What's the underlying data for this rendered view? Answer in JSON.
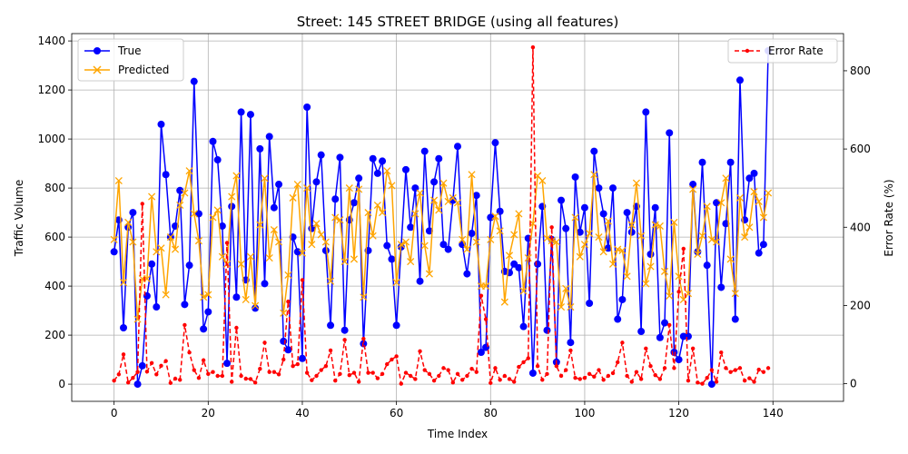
{
  "chart_data": {
    "type": "line",
    "title": "Street: 145 STREET BRIDGE (using all features)",
    "xlabel": "Time Index",
    "ylabel": "Traffic Volume",
    "y2label": "Error Rate (%)",
    "xlim": [
      -9,
      155
    ],
    "ylim": [
      -70,
      1430
    ],
    "y2lim": [
      -45,
      895
    ],
    "xticks": [
      0,
      20,
      40,
      60,
      80,
      100,
      120,
      140
    ],
    "yticks": [
      0,
      200,
      400,
      600,
      800,
      1000,
      1200,
      1400
    ],
    "y2ticks": [
      0,
      200,
      400,
      600,
      800
    ],
    "grid": true,
    "legend_left": "upper-left",
    "legend_right": "upper-right",
    "series": [
      {
        "name": "True",
        "color": "#0000ff",
        "marker": "circle",
        "axis": "left",
        "values": [
          540,
          670,
          230,
          640,
          700,
          0,
          75,
          360,
          490,
          315,
          1060,
          855,
          600,
          645,
          790,
          325,
          485,
          1235,
          695,
          225,
          295,
          990,
          915,
          645,
          85,
          725,
          355,
          1110,
          425,
          1100,
          310,
          960,
          410,
          1010,
          720,
          815,
          175,
          140,
          600,
          540,
          105,
          1130,
          635,
          825,
          935,
          545,
          240,
          755,
          925,
          220,
          670,
          740,
          840,
          165,
          545,
          920,
          860,
          910,
          565,
          510,
          240,
          560,
          875,
          640,
          800,
          420,
          950,
          625,
          825,
          920,
          570,
          550,
          750,
          970,
          570,
          450,
          615,
          770,
          130,
          150,
          680,
          985,
          705,
          460,
          455,
          490,
          475,
          235,
          595,
          45,
          490,
          725,
          220,
          590,
          90,
          750,
          635,
          170,
          845,
          620,
          720,
          330,
          950,
          800,
          695,
          555,
          800,
          265,
          345,
          700,
          620,
          725,
          215,
          1110,
          530,
          720,
          190,
          250,
          1025,
          130,
          100,
          195,
          195,
          815,
          540,
          905,
          485,
          0,
          740,
          395,
          655,
          905,
          265,
          1240,
          670,
          840,
          860,
          535,
          570,
          1360
        ]
      },
      {
        "name": "Predicted",
        "color": "#ffa500",
        "marker": "x",
        "axis": "left",
        "values": [
          590,
          830,
          415,
          660,
          580,
          265,
          430,
          430,
          765,
          540,
          555,
          365,
          600,
          550,
          730,
          780,
          870,
          695,
          585,
          355,
          365,
          680,
          710,
          520,
          490,
          765,
          850,
          490,
          345,
          520,
          320,
          650,
          840,
          515,
          630,
          580,
          290,
          445,
          760,
          815,
          535,
          800,
          570,
          655,
          610,
          580,
          420,
          680,
          670,
          500,
          800,
          510,
          795,
          355,
          700,
          605,
          730,
          700,
          870,
          810,
          415,
          570,
          580,
          500,
          695,
          780,
          565,
          450,
          750,
          710,
          820,
          745,
          760,
          740,
          590,
          550,
          855,
          580,
          400,
          400,
          590,
          685,
          625,
          335,
          525,
          610,
          695,
          380,
          515,
          655,
          850,
          830,
          595,
          585,
          580,
          315,
          390,
          315,
          680,
          520,
          570,
          615,
          855,
          600,
          540,
          665,
          490,
          550,
          545,
          440,
          650,
          820,
          605,
          410,
          480,
          650,
          645,
          460,
          360,
          660,
          440,
          345,
          370,
          795,
          530,
          605,
          725,
          590,
          580,
          740,
          840,
          510,
          370,
          760,
          600,
          640,
          785,
          745,
          680,
          780
        ]
      },
      {
        "name": "Error Rate",
        "color": "#ff0000",
        "marker": "dot",
        "axis": "right",
        "values": [
          8,
          24,
          75,
          3,
          15,
          30,
          460,
          31,
          53,
          24,
          46,
          58,
          2,
          13,
          10,
          150,
          80,
          35,
          15,
          60,
          25,
          30,
          20,
          20,
          360,
          5,
          143,
          20,
          13,
          12,
          3,
          38,
          105,
          30,
          30,
          24,
          62,
          210,
          45,
          50,
          265,
          28,
          9,
          20,
          35,
          45,
          85,
          8,
          25,
          112,
          22,
          28,
          5,
          115,
          28,
          28,
          14,
          25,
          50,
          62,
          70,
          0,
          28,
          20,
          12,
          83,
          35,
          25,
          8,
          20,
          40,
          35,
          3,
          25,
          10,
          20,
          38,
          30,
          225,
          165,
          2,
          40,
          10,
          20,
          12,
          5,
          43,
          55,
          65,
          860,
          45,
          10,
          25,
          400,
          45,
          20,
          35,
          85,
          15,
          12,
          15,
          25,
          18,
          35,
          10,
          20,
          27,
          55,
          105,
          20,
          5,
          30,
          12,
          90,
          45,
          22,
          12,
          40,
          150,
          40,
          235,
          345,
          8,
          90,
          3,
          0,
          15,
          35,
          5,
          80,
          40,
          30,
          35,
          40,
          8,
          14,
          5,
          36,
          30,
          40
        ]
      }
    ]
  }
}
